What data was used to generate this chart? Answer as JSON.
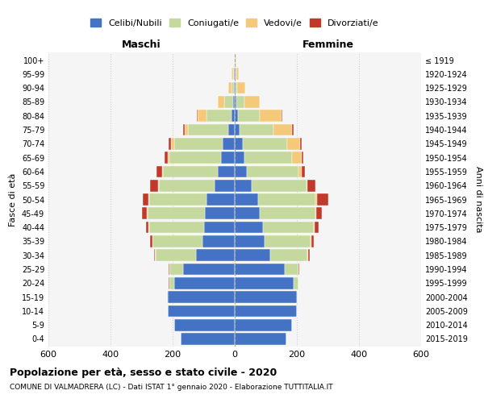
{
  "age_groups": [
    "0-4",
    "5-9",
    "10-14",
    "15-19",
    "20-24",
    "25-29",
    "30-34",
    "35-39",
    "40-44",
    "45-49",
    "50-54",
    "55-59",
    "60-64",
    "65-69",
    "70-74",
    "75-79",
    "80-84",
    "85-89",
    "90-94",
    "95-99",
    "100+"
  ],
  "birth_years": [
    "2015-2019",
    "2010-2014",
    "2005-2009",
    "2000-2004",
    "1995-1999",
    "1990-1994",
    "1985-1989",
    "1980-1984",
    "1975-1979",
    "1970-1974",
    "1965-1969",
    "1960-1964",
    "1955-1959",
    "1950-1954",
    "1945-1949",
    "1940-1944",
    "1935-1939",
    "1930-1934",
    "1925-1929",
    "1920-1924",
    "≤ 1919"
  ],
  "colors": {
    "celibi": "#4472C4",
    "coniugati": "#c5d89d",
    "vedovi": "#f5c97a",
    "divorziati": "#c0392b"
  },
  "males": {
    "celibi": [
      175,
      195,
      215,
      215,
      195,
      165,
      125,
      105,
      100,
      95,
      90,
      65,
      55,
      45,
      40,
      20,
      10,
      5,
      2,
      2,
      1
    ],
    "coniugati": [
      0,
      0,
      1,
      2,
      15,
      45,
      130,
      160,
      175,
      185,
      185,
      180,
      175,
      165,
      155,
      130,
      80,
      30,
      8,
      3,
      1
    ],
    "vedovi": [
      0,
      0,
      0,
      0,
      1,
      0,
      1,
      1,
      2,
      2,
      2,
      3,
      3,
      5,
      10,
      10,
      30,
      20,
      10,
      5,
      1
    ],
    "divorziati": [
      0,
      0,
      0,
      0,
      1,
      2,
      5,
      8,
      10,
      18,
      20,
      25,
      20,
      10,
      8,
      5,
      2,
      0,
      0,
      0,
      0
    ]
  },
  "females": {
    "celibi": [
      165,
      185,
      200,
      200,
      190,
      160,
      115,
      95,
      90,
      80,
      75,
      55,
      40,
      30,
      25,
      15,
      10,
      5,
      3,
      2,
      1
    ],
    "coniugati": [
      0,
      0,
      1,
      2,
      15,
      45,
      120,
      150,
      165,
      180,
      185,
      175,
      165,
      155,
      145,
      110,
      70,
      25,
      5,
      2,
      1
    ],
    "vedovi": [
      0,
      0,
      0,
      0,
      0,
      0,
      1,
      2,
      3,
      3,
      5,
      5,
      10,
      30,
      40,
      60,
      70,
      50,
      25,
      8,
      2
    ],
    "divorziati": [
      0,
      0,
      0,
      0,
      1,
      2,
      5,
      8,
      12,
      18,
      35,
      25,
      10,
      5,
      5,
      5,
      2,
      0,
      0,
      0,
      0
    ]
  },
  "xlim": 600,
  "title": "Popolazione per età, sesso e stato civile - 2020",
  "subtitle": "COMUNE DI VALMADRERA (LC) - Dati ISTAT 1° gennaio 2020 - Elaborazione TUTTITALIA.IT",
  "xlabel_left": "Maschi",
  "xlabel_right": "Femmine",
  "ylabel_left": "Fasce di età",
  "ylabel_right": "Anni di nascita",
  "legend_labels": [
    "Celibi/Nubili",
    "Coniugati/e",
    "Vedovi/e",
    "Divorziati/e"
  ],
  "bg_color": "#ffffff",
  "grid_color": "#cccccc",
  "bar_bg_color": "#f5f5f5"
}
